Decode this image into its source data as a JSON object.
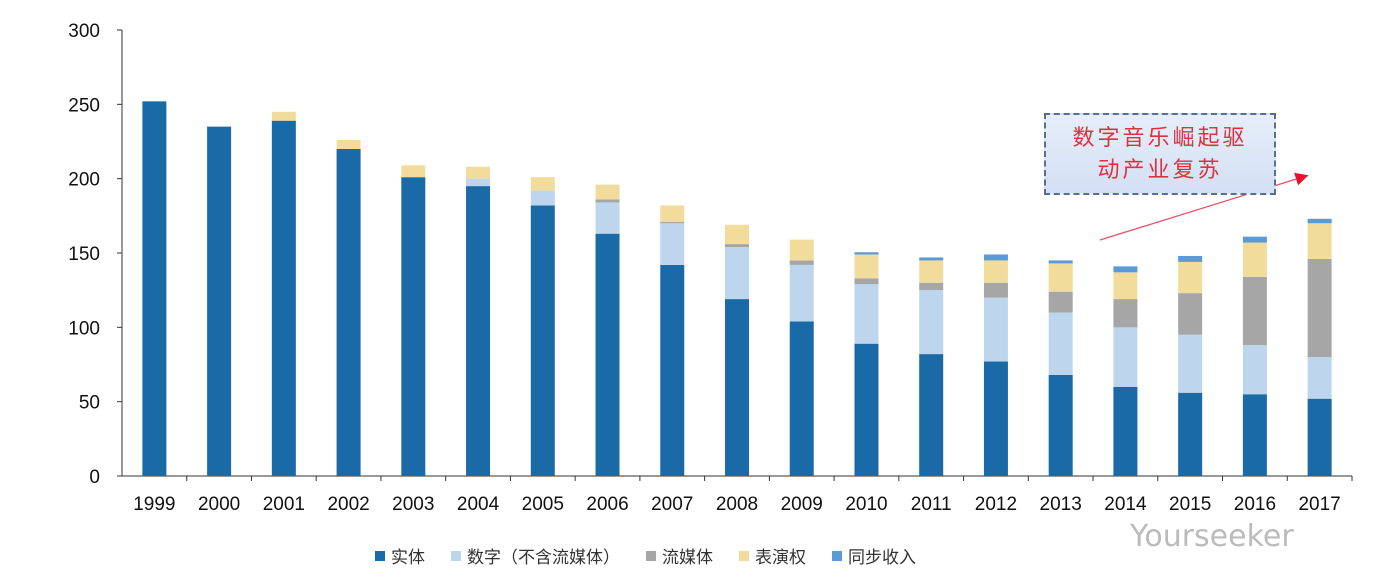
{
  "chart_data": {
    "type": "bar",
    "stacked": true,
    "categories": [
      "1999",
      "2000",
      "2001",
      "2002",
      "2003",
      "2004",
      "2005",
      "2006",
      "2007",
      "2008",
      "2009",
      "2010",
      "2011",
      "2012",
      "2013",
      "2014",
      "2015",
      "2016",
      "2017"
    ],
    "ylim": [
      0,
      300
    ],
    "yticks": [
      0,
      50,
      100,
      150,
      200,
      250,
      300
    ],
    "grid": false,
    "legend_placement": "bottom",
    "series": [
      {
        "name": "实体",
        "color": "#1a6aa8",
        "values": [
          252,
          235,
          239,
          220,
          201,
          195,
          182,
          163,
          142,
          119,
          104,
          89,
          82,
          77,
          68,
          60,
          56,
          55,
          52
        ]
      },
      {
        "name": "数字（不含流媒体）",
        "color": "#bdd6ee",
        "values": [
          0,
          0,
          0,
          0,
          0,
          5,
          10,
          21,
          28,
          35,
          38,
          40,
          43,
          43,
          42,
          40,
          39,
          33,
          28
        ]
      },
      {
        "name": "流媒体",
        "color": "#a6a6a6",
        "values": [
          0,
          0,
          0,
          0,
          0,
          0,
          0,
          2,
          1,
          2,
          3,
          4,
          5,
          10,
          14,
          19,
          28,
          46,
          66
        ]
      },
      {
        "name": "表演权",
        "color": "#f2dc9b",
        "values": [
          0,
          0,
          6,
          6,
          8,
          8,
          9,
          10,
          11,
          13,
          14,
          16,
          15,
          15,
          19,
          18,
          21,
          23,
          24
        ]
      },
      {
        "name": "同步收入",
        "color": "#5b9bd5",
        "values": [
          0,
          0,
          0,
          0,
          0,
          0,
          0,
          0,
          0,
          0,
          0,
          1.5,
          2,
          4,
          2,
          4,
          4,
          4,
          3
        ]
      }
    ],
    "annotation": {
      "line1": "数字音乐崛起驱",
      "line2": "动产业复苏",
      "color": "#e03040"
    }
  },
  "watermark": "Yourseeker"
}
